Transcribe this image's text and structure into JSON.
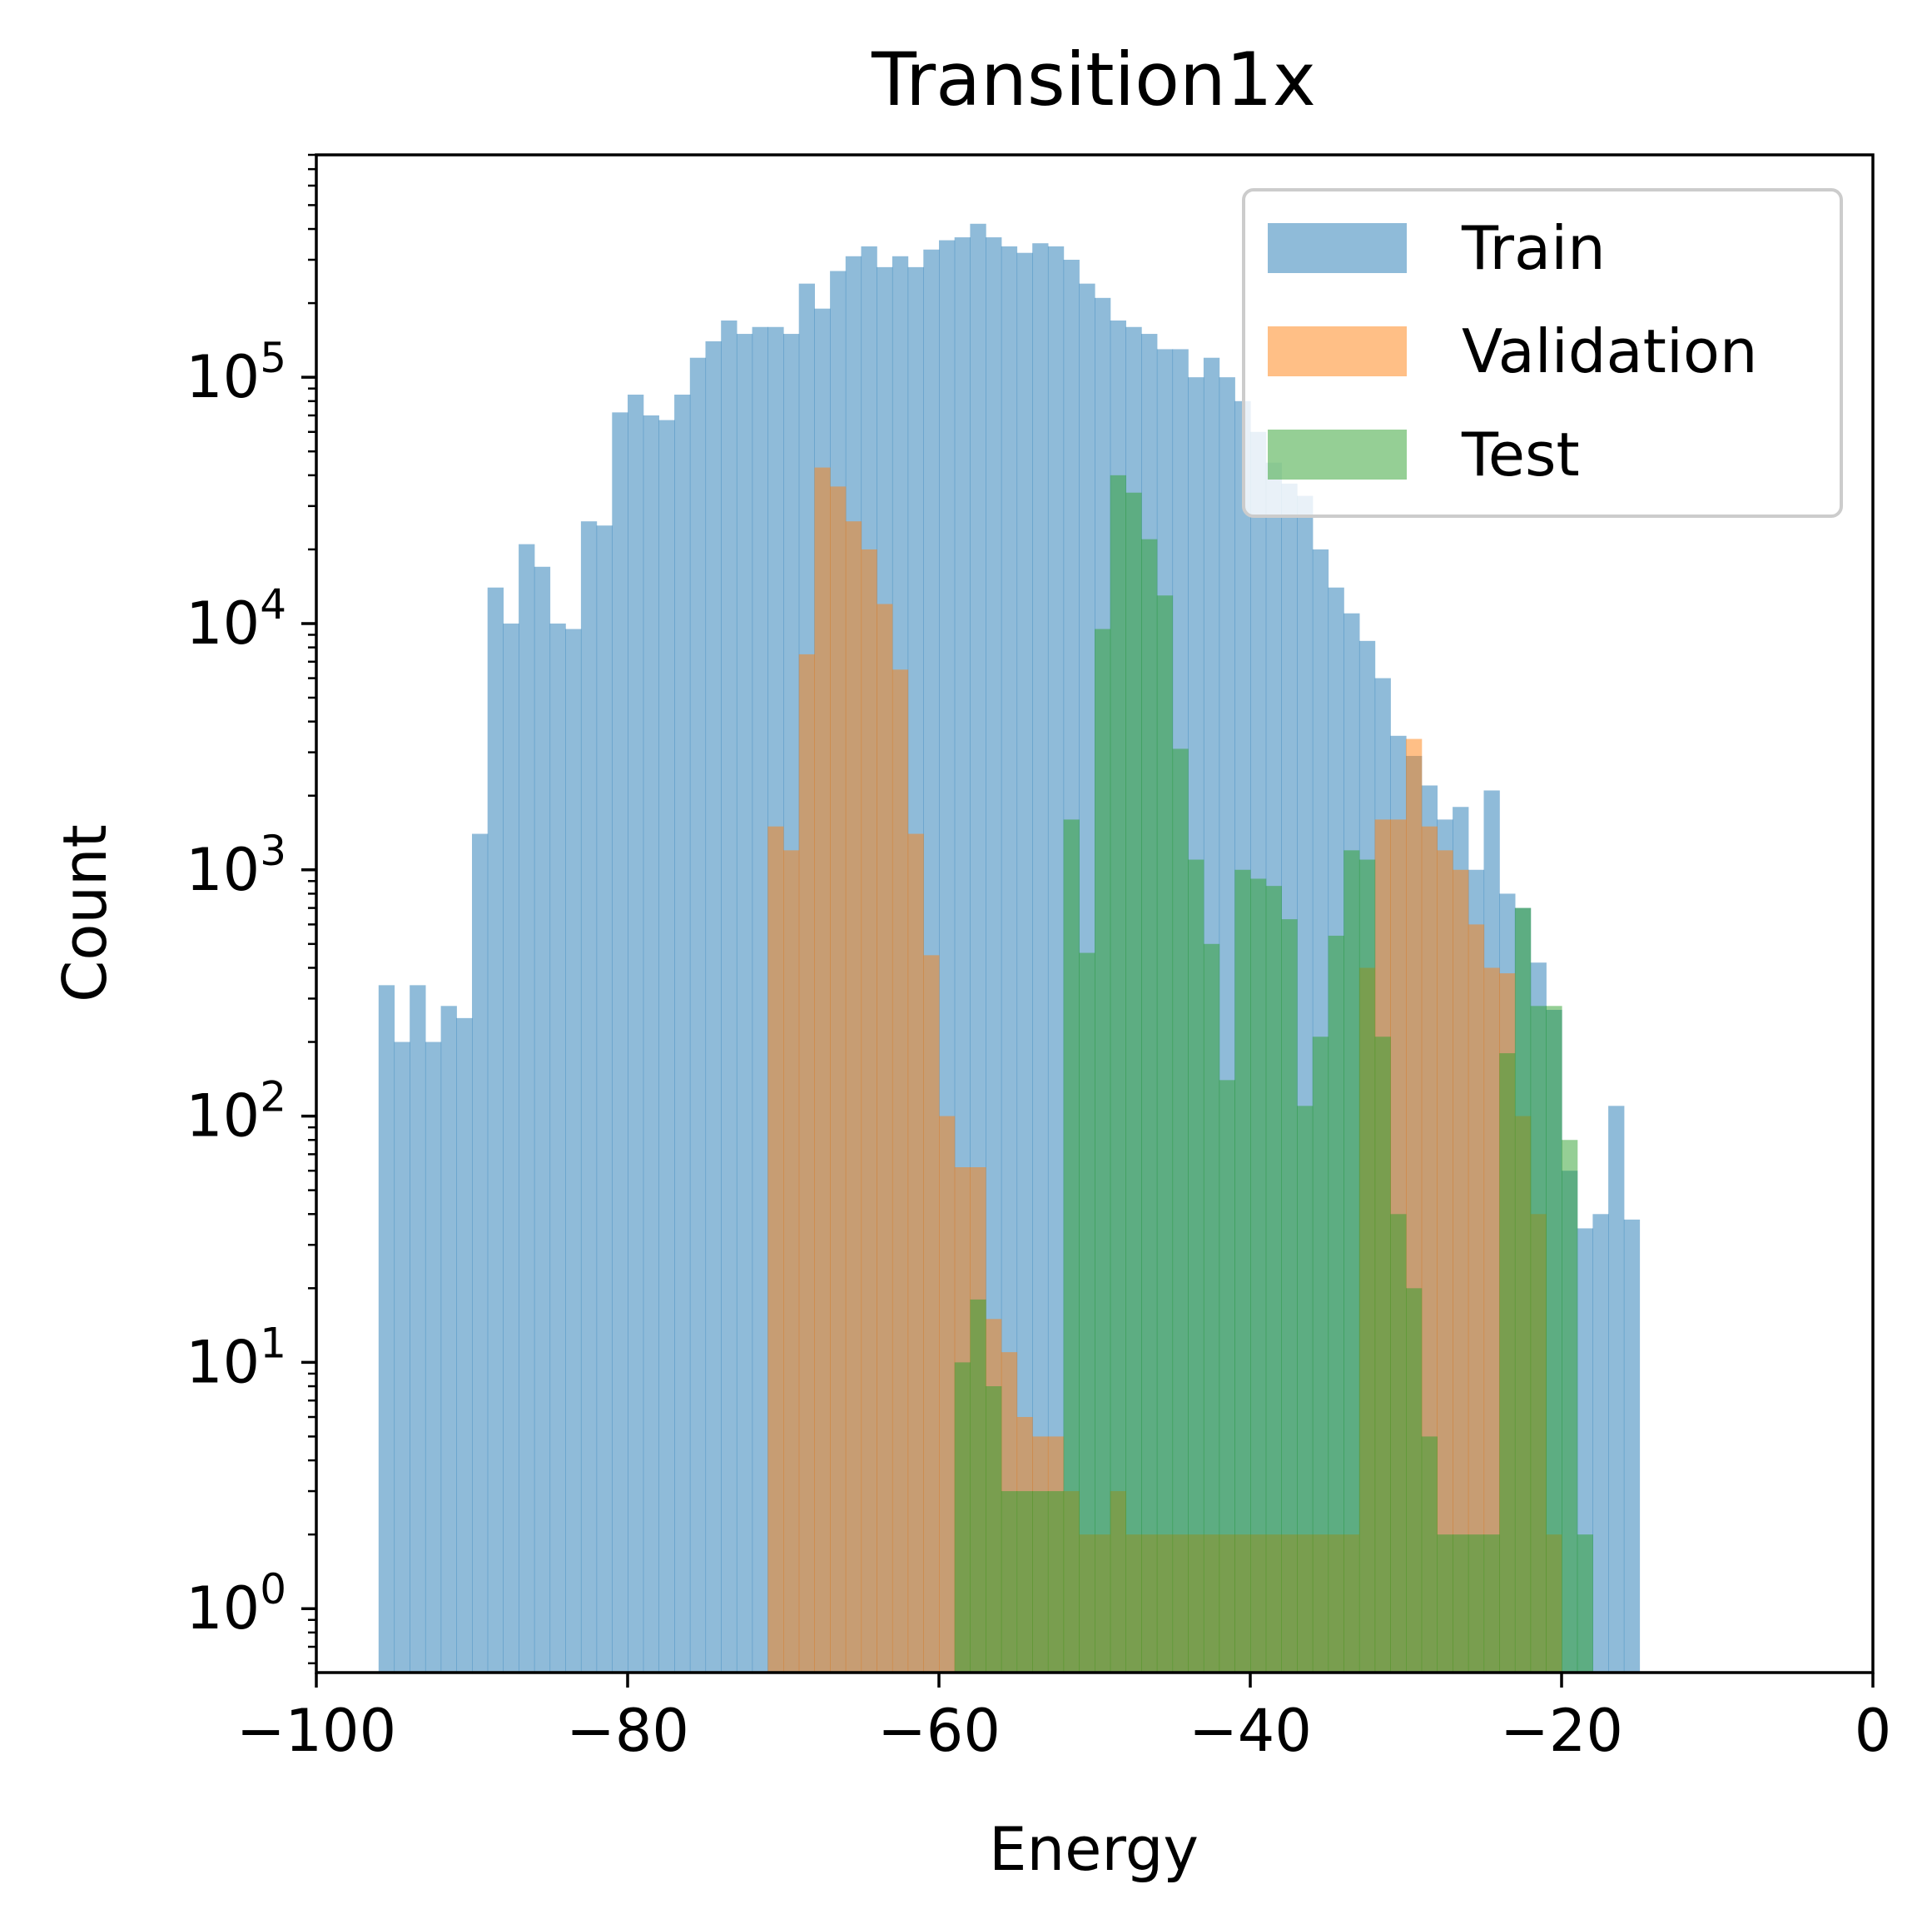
{
  "chart_data": {
    "type": "bar",
    "title": "Transition1x",
    "xlabel": "Energy",
    "ylabel": "Count",
    "xlim": [
      -100,
      0
    ],
    "ylim": [
      0.55,
      800000
    ],
    "yscale": "log",
    "grid": false,
    "legend_position": "top-right",
    "x_ticks": [
      -100,
      -80,
      -60,
      -40,
      -20,
      0
    ],
    "x_tick_labels": [
      "−100",
      "−80",
      "−60",
      "−40",
      "−20",
      "0"
    ],
    "y_ticks": [
      1,
      10,
      100,
      1000,
      10000,
      100000
    ],
    "y_tick_labels": [
      {
        "base": "10",
        "exp": "0"
      },
      {
        "base": "10",
        "exp": "1"
      },
      {
        "base": "10",
        "exp": "2"
      },
      {
        "base": "10",
        "exp": "3"
      },
      {
        "base": "10",
        "exp": "4"
      },
      {
        "base": "10",
        "exp": "5"
      }
    ],
    "series": [
      {
        "name": "Train",
        "color": "#1f77b4",
        "alpha": 0.5,
        "bins": [
          [
            -96,
            -95,
            340
          ],
          [
            -95,
            -94,
            200
          ],
          [
            -94,
            -93,
            340
          ],
          [
            -93,
            -92,
            200
          ],
          [
            -92,
            -91,
            280
          ],
          [
            -91,
            -90,
            250
          ],
          [
            -90,
            -89,
            1400
          ],
          [
            -89,
            -88,
            14000
          ],
          [
            -88,
            -87,
            10000
          ],
          [
            -87,
            -86,
            21000
          ],
          [
            -86,
            -85,
            17000
          ],
          [
            -85,
            -84,
            10000
          ],
          [
            -84,
            -83,
            9500
          ],
          [
            -83,
            -82,
            26000
          ],
          [
            -82,
            -81,
            25000
          ],
          [
            -81,
            -80,
            72000
          ],
          [
            -80,
            -79,
            85000
          ],
          [
            -79,
            -78,
            70000
          ],
          [
            -78,
            -77,
            67000
          ],
          [
            -77,
            -76,
            85000
          ],
          [
            -76,
            -75,
            120000
          ],
          [
            -75,
            -74,
            140000
          ],
          [
            -74,
            -73,
            170000
          ],
          [
            -73,
            -72,
            150000
          ],
          [
            -72,
            -71,
            160000
          ],
          [
            -71,
            -70,
            160000
          ],
          [
            -70,
            -69,
            150000
          ],
          [
            -69,
            -68,
            240000
          ],
          [
            -68,
            -67,
            190000
          ],
          [
            -67,
            -66,
            270000
          ],
          [
            -66,
            -65,
            310000
          ],
          [
            -65,
            -64,
            340000
          ],
          [
            -64,
            -63,
            280000
          ],
          [
            -63,
            -62,
            310000
          ],
          [
            -62,
            -61,
            280000
          ],
          [
            -61,
            -60,
            330000
          ],
          [
            -60,
            -59,
            360000
          ],
          [
            -59,
            -58,
            370000
          ],
          [
            -58,
            -57,
            420000
          ],
          [
            -57,
            -56,
            370000
          ],
          [
            -56,
            -55,
            340000
          ],
          [
            -55,
            -54,
            320000
          ],
          [
            -54,
            -53,
            350000
          ],
          [
            -53,
            -52,
            340000
          ],
          [
            -52,
            -51,
            300000
          ],
          [
            -51,
            -50,
            240000
          ],
          [
            -50,
            -49,
            210000
          ],
          [
            -49,
            -48,
            170000
          ],
          [
            -48,
            -47,
            160000
          ],
          [
            -47,
            -46,
            150000
          ],
          [
            -46,
            -45,
            130000
          ],
          [
            -45,
            -44,
            130000
          ],
          [
            -44,
            -43,
            100000
          ],
          [
            -43,
            -42,
            120000
          ],
          [
            -42,
            -41,
            100000
          ],
          [
            -41,
            -40,
            80000
          ],
          [
            -40,
            -39,
            60000
          ],
          [
            -39,
            -38,
            45000
          ],
          [
            -38,
            -37,
            37000
          ],
          [
            -37,
            -36,
            33000
          ],
          [
            -36,
            -35,
            20000
          ],
          [
            -35,
            -34,
            14000
          ],
          [
            -34,
            -33,
            11000
          ],
          [
            -33,
            -32,
            8500
          ],
          [
            -32,
            -31,
            6000
          ],
          [
            -31,
            -30,
            3500
          ],
          [
            -30,
            -29,
            2900
          ],
          [
            -29,
            -28,
            2200
          ],
          [
            -28,
            -27,
            1600
          ],
          [
            -27,
            -26,
            1800
          ],
          [
            -26,
            -25,
            1000
          ],
          [
            -25,
            -24,
            2100
          ],
          [
            -24,
            -23,
            800
          ],
          [
            -23,
            -22,
            700
          ],
          [
            -22,
            -21,
            420
          ],
          [
            -21,
            -20,
            270
          ],
          [
            -20,
            -19,
            60
          ],
          [
            -19,
            -18,
            35
          ],
          [
            -18,
            -17,
            40
          ],
          [
            -17,
            -16,
            110
          ],
          [
            -16,
            -15,
            38
          ]
        ]
      },
      {
        "name": "Validation",
        "color": "#ff7f0e",
        "alpha": 0.5,
        "bins": [
          [
            -71,
            -70,
            1500
          ],
          [
            -70,
            -69,
            1200
          ],
          [
            -69,
            -68,
            7500
          ],
          [
            -68,
            -67,
            43000
          ],
          [
            -67,
            -66,
            36000
          ],
          [
            -66,
            -65,
            26000
          ],
          [
            -65,
            -64,
            20000
          ],
          [
            -64,
            -63,
            12000
          ],
          [
            -63,
            -62,
            6500
          ],
          [
            -62,
            -61,
            1400
          ],
          [
            -61,
            -60,
            450
          ],
          [
            -60,
            -59,
            100
          ],
          [
            -59,
            -58,
            62
          ],
          [
            -58,
            -57,
            62
          ],
          [
            -57,
            -56,
            15
          ],
          [
            -56,
            -55,
            11
          ],
          [
            -55,
            -54,
            6
          ],
          [
            -54,
            -53,
            5
          ],
          [
            -53,
            -52,
            5
          ],
          [
            -52,
            -51,
            3
          ],
          [
            -51,
            -50,
            2
          ],
          [
            -50,
            -49,
            2
          ],
          [
            -49,
            -48,
            3
          ],
          [
            -48,
            -47,
            2
          ],
          [
            -47,
            -46,
            2
          ],
          [
            -46,
            -45,
            2
          ],
          [
            -45,
            -44,
            2
          ],
          [
            -44,
            -43,
            2
          ],
          [
            -43,
            -42,
            2
          ],
          [
            -42,
            -41,
            2
          ],
          [
            -41,
            -40,
            2
          ],
          [
            -40,
            -39,
            2
          ],
          [
            -39,
            -38,
            2
          ],
          [
            -38,
            -37,
            2
          ],
          [
            -37,
            -36,
            2
          ],
          [
            -36,
            -35,
            2
          ],
          [
            -35,
            -34,
            2
          ],
          [
            -34,
            -33,
            2
          ],
          [
            -33,
            -32,
            400
          ],
          [
            -32,
            -31,
            1600
          ],
          [
            -31,
            -30,
            1600
          ],
          [
            -30,
            -29,
            3400
          ],
          [
            -29,
            -28,
            1500
          ],
          [
            -28,
            -27,
            1200
          ],
          [
            -27,
            -26,
            1000
          ],
          [
            -26,
            -25,
            600
          ],
          [
            -25,
            -24,
            400
          ],
          [
            -24,
            -23,
            380
          ],
          [
            -23,
            -22,
            100
          ],
          [
            -22,
            -21,
            40
          ],
          [
            -21,
            -20,
            2
          ]
        ]
      },
      {
        "name": "Test",
        "color": "#2ca02c",
        "alpha": 0.5,
        "bins": [
          [
            -59,
            -58,
            10
          ],
          [
            -58,
            -57,
            18
          ],
          [
            -57,
            -56,
            8
          ],
          [
            -56,
            -55,
            3
          ],
          [
            -55,
            -54,
            3
          ],
          [
            -54,
            -53,
            3
          ],
          [
            -53,
            -52,
            3
          ],
          [
            -52,
            -51,
            1600
          ],
          [
            -51,
            -50,
            460
          ],
          [
            -50,
            -49,
            9500
          ],
          [
            -49,
            -48,
            40000
          ],
          [
            -48,
            -47,
            34000
          ],
          [
            -47,
            -46,
            22000
          ],
          [
            -46,
            -45,
            13000
          ],
          [
            -45,
            -44,
            3100
          ],
          [
            -44,
            -43,
            1100
          ],
          [
            -43,
            -42,
            500
          ],
          [
            -42,
            -41,
            140
          ],
          [
            -41,
            -40,
            1000
          ],
          [
            -40,
            -39,
            920
          ],
          [
            -39,
            -38,
            860
          ],
          [
            -38,
            -37,
            630
          ],
          [
            -37,
            -36,
            110
          ],
          [
            -36,
            -35,
            210
          ],
          [
            -35,
            -34,
            540
          ],
          [
            -34,
            -33,
            1200
          ],
          [
            -33,
            -32,
            1100
          ],
          [
            -32,
            -31,
            210
          ],
          [
            -31,
            -30,
            40
          ],
          [
            -30,
            -29,
            20
          ],
          [
            -29,
            -28,
            5
          ],
          [
            -28,
            -27,
            2
          ],
          [
            -27,
            -26,
            2
          ],
          [
            -26,
            -25,
            2
          ],
          [
            -25,
            -24,
            2
          ],
          [
            -24,
            -23,
            180
          ],
          [
            -23,
            -22,
            700
          ],
          [
            -22,
            -21,
            280
          ],
          [
            -21,
            -20,
            280
          ],
          [
            -20,
            -19,
            80
          ],
          [
            -19,
            -18,
            2
          ]
        ]
      }
    ]
  }
}
